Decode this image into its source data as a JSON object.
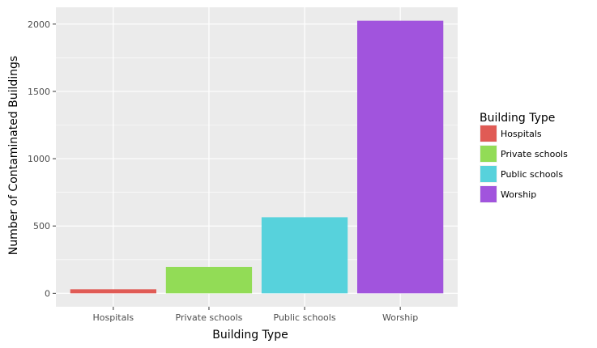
{
  "chart_data": {
    "type": "bar",
    "title": "",
    "xlabel": "Building Type",
    "ylabel": "Number of Contaminated Buildings",
    "categories": [
      "Hospitals",
      "Private schools",
      "Public schools",
      "Worship"
    ],
    "values": [
      30,
      195,
      565,
      2025
    ],
    "ylim": [
      -100,
      2125
    ],
    "yticks": [
      0,
      500,
      1000,
      1500,
      2000
    ],
    "grid": true,
    "legend": {
      "title": "Building Type",
      "position": "right",
      "entries": [
        "Hospitals",
        "Private schools",
        "Public schools",
        "Worship"
      ]
    },
    "colors": [
      "#e05b55",
      "#92dc56",
      "#57d2dc",
      "#a154dd"
    ],
    "panel_background": "#ebebeb",
    "grid_color": "#ffffff"
  }
}
